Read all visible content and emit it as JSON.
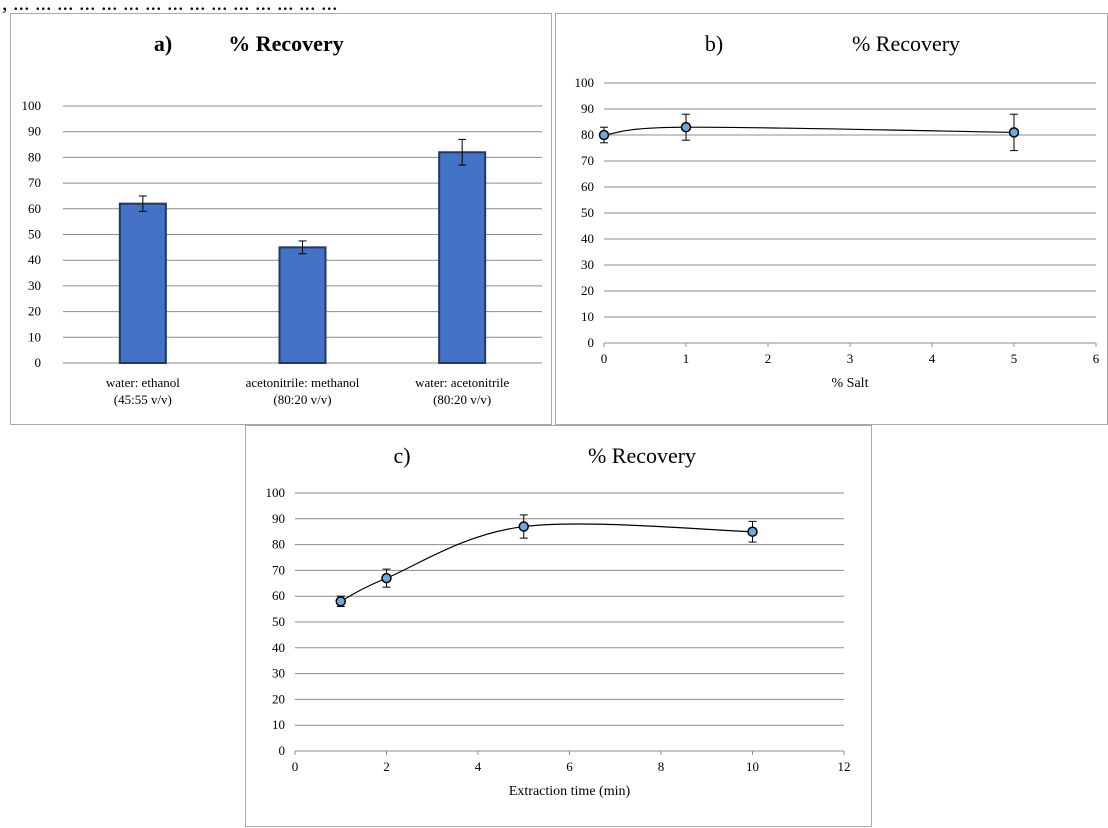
{
  "header_text": ", ... ... ... ... ... ... ... ... ... ... ... ... ... ... ...",
  "chart_data": [
    {
      "id": "a",
      "type": "bar",
      "panel_label": "a)",
      "title": "% Recovery",
      "categories": [
        [
          "water: ethanol",
          "(45:55 v/v)"
        ],
        [
          "acetonitrile: methanol",
          "(80:20 v/v)"
        ],
        [
          "water: acetonitrile",
          "(80:20 v/v)"
        ]
      ],
      "values": [
        62,
        45,
        82
      ],
      "error": [
        3,
        2.5,
        5
      ],
      "ylim": [
        0,
        100
      ],
      "yticks": [
        0,
        10,
        20,
        30,
        40,
        50,
        60,
        70,
        80,
        90,
        100
      ],
      "grid": true,
      "bar_color": "#4472c4",
      "bar_edge": "#1f3864"
    },
    {
      "id": "b",
      "type": "line",
      "panel_label": "b)",
      "title": "% Recovery",
      "xlabel": "% Salt",
      "x": [
        0,
        1,
        5
      ],
      "y": [
        80,
        83,
        81
      ],
      "error": [
        3,
        5,
        7
      ],
      "xlim": [
        0,
        6
      ],
      "ylim": [
        0,
        100
      ],
      "xticks": [
        0,
        1,
        2,
        3,
        4,
        5,
        6
      ],
      "yticks": [
        0,
        10,
        20,
        30,
        40,
        50,
        60,
        70,
        80,
        90,
        100
      ],
      "grid": true,
      "marker_color": "#6fa8dc"
    },
    {
      "id": "c",
      "type": "line",
      "panel_label": "c)",
      "title": "% Recovery",
      "xlabel": "Extraction time (min)",
      "x": [
        1,
        2,
        5,
        10
      ],
      "y": [
        58,
        67,
        87,
        85
      ],
      "error": [
        2,
        3.5,
        4.5,
        4
      ],
      "xlim": [
        0,
        12
      ],
      "ylim": [
        0,
        100
      ],
      "xticks": [
        0,
        2,
        4,
        6,
        8,
        10,
        12
      ],
      "yticks": [
        0,
        10,
        20,
        30,
        40,
        50,
        60,
        70,
        80,
        90,
        100
      ],
      "grid": true,
      "marker_color": "#6fa8dc"
    }
  ]
}
